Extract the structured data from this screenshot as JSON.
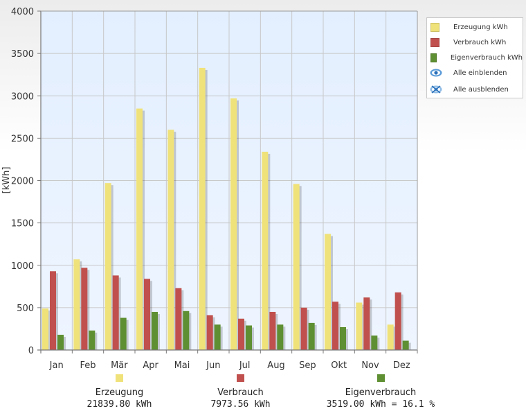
{
  "chart_data": {
    "type": "bar",
    "categories": [
      "Jan",
      "Feb",
      "Mär",
      "Apr",
      "Mai",
      "Jun",
      "Jul",
      "Aug",
      "Sep",
      "Okt",
      "Nov",
      "Dez"
    ],
    "series": [
      {
        "name": "Erzeugung kWh",
        "color": "#f0e27a",
        "values": [
          490,
          1070,
          1970,
          2850,
          2600,
          3330,
          2970,
          2340,
          1960,
          1370,
          560,
          300
        ]
      },
      {
        "name": "Verbrauch kWh",
        "color": "#c0504d",
        "values": [
          930,
          970,
          880,
          840,
          730,
          410,
          370,
          450,
          500,
          570,
          620,
          680
        ]
      },
      {
        "name": "Eigenverbrauch kWh",
        "color": "#5e8f32",
        "values": [
          180,
          230,
          380,
          450,
          460,
          300,
          290,
          300,
          320,
          270,
          170,
          110
        ]
      }
    ],
    "ylabel": "[kWh]",
    "yticks": [
      0,
      500,
      1000,
      1500,
      2000,
      2500,
      3000,
      3500,
      4000
    ],
    "ylim": [
      0,
      4000
    ],
    "grid": true,
    "legend_position": "top-right"
  },
  "legend": {
    "items": [
      {
        "label": "Erzeugung kWh",
        "color": "#f0e27a"
      },
      {
        "label": "Verbrauch kWh",
        "color": "#c0504d"
      },
      {
        "label": "Eigenverbrauch kWh",
        "color": "#5e8f32"
      }
    ],
    "show_all": {
      "label": "Alle einblenden",
      "icon": "eye-icon"
    },
    "hide_all": {
      "label": "Alle ausblenden",
      "icon": "eye-hidden-icon"
    }
  },
  "summary": {
    "erzeugung": {
      "label": "Erzeugung",
      "value": "21839.80 kWh",
      "color": "#f0e27a"
    },
    "verbrauch": {
      "label": "Verbrauch",
      "value": "7973.56 kWh",
      "color": "#c0504d"
    },
    "eigenverbrauch": {
      "label": "Eigenverbrauch",
      "value": "3519.00 kWh = 16.1 %",
      "color": "#5e8f32"
    }
  }
}
